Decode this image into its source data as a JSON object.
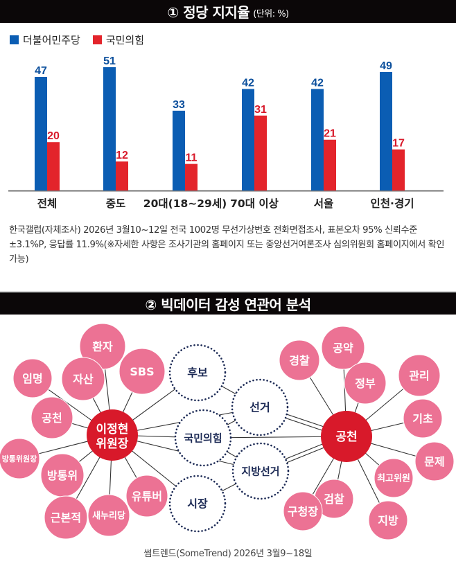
{
  "section1": {
    "title": "① 정당 지지율",
    "unit": "(단위: %)"
  },
  "legend": [
    {
      "name": "더불어민주당",
      "color": "#0b5db3"
    },
    {
      "name": "국민의힘",
      "color": "#e3242b"
    }
  ],
  "chart_data": {
    "type": "bar",
    "title": "정당 지지율",
    "unit": "%",
    "categories": [
      "전체",
      "중도",
      "20대(18~29세)",
      "70대 이상",
      "서울",
      "인천·경기"
    ],
    "series": [
      {
        "name": "더불어민주당",
        "color": "#0b5db3",
        "values": [
          47,
          51,
          33,
          42,
          42,
          49
        ]
      },
      {
        "name": "국민의힘",
        "color": "#e3242b",
        "values": [
          20,
          12,
          11,
          31,
          21,
          17
        ]
      }
    ],
    "ylim": [
      0,
      55
    ],
    "grid": false,
    "legend_position": "top-left",
    "data_labels": true
  },
  "note": "한국갤럽(자체조사) 2026년 3월10~12일 전국 1002명 무선가상번호 전화면접조사, 표본오차 95% 신뢰수준 ±3.1%P, 응답률 11.9%(※자세한 사항은 조사기관의 홈페이지 또는 중앙선거여론조사 심의위원회 홈페이지에서 확인 가능)",
  "section2": {
    "title": "② 빅데이터 감성 연관어 분석"
  },
  "network": {
    "hubs": [
      {
        "id": "lee",
        "label": [
          "이정현",
          "위원장"
        ]
      },
      {
        "id": "gongcheon",
        "label": [
          "공천"
        ]
      }
    ],
    "shared": [
      "후보",
      "선거",
      "국민의힘",
      "지방선거",
      "시장"
    ],
    "left_terms": [
      "환자",
      "SBS",
      "자산",
      "임명",
      "공천",
      "방통위원장",
      "방통위",
      "근본적",
      "새누리당",
      "유튜버"
    ],
    "right_terms": [
      "공약",
      "경찰",
      "정부",
      "관리",
      "기초",
      "문제",
      "최고위원",
      "지방",
      "검찰",
      "구청장"
    ],
    "colors": {
      "hub": "#d8192a",
      "term": "#ec7294",
      "shared_border": "#1c2a55",
      "shared_text": "#1c2a55"
    }
  },
  "source": "썸트렌드(SomeTrend) 2026년 3월9~18일"
}
